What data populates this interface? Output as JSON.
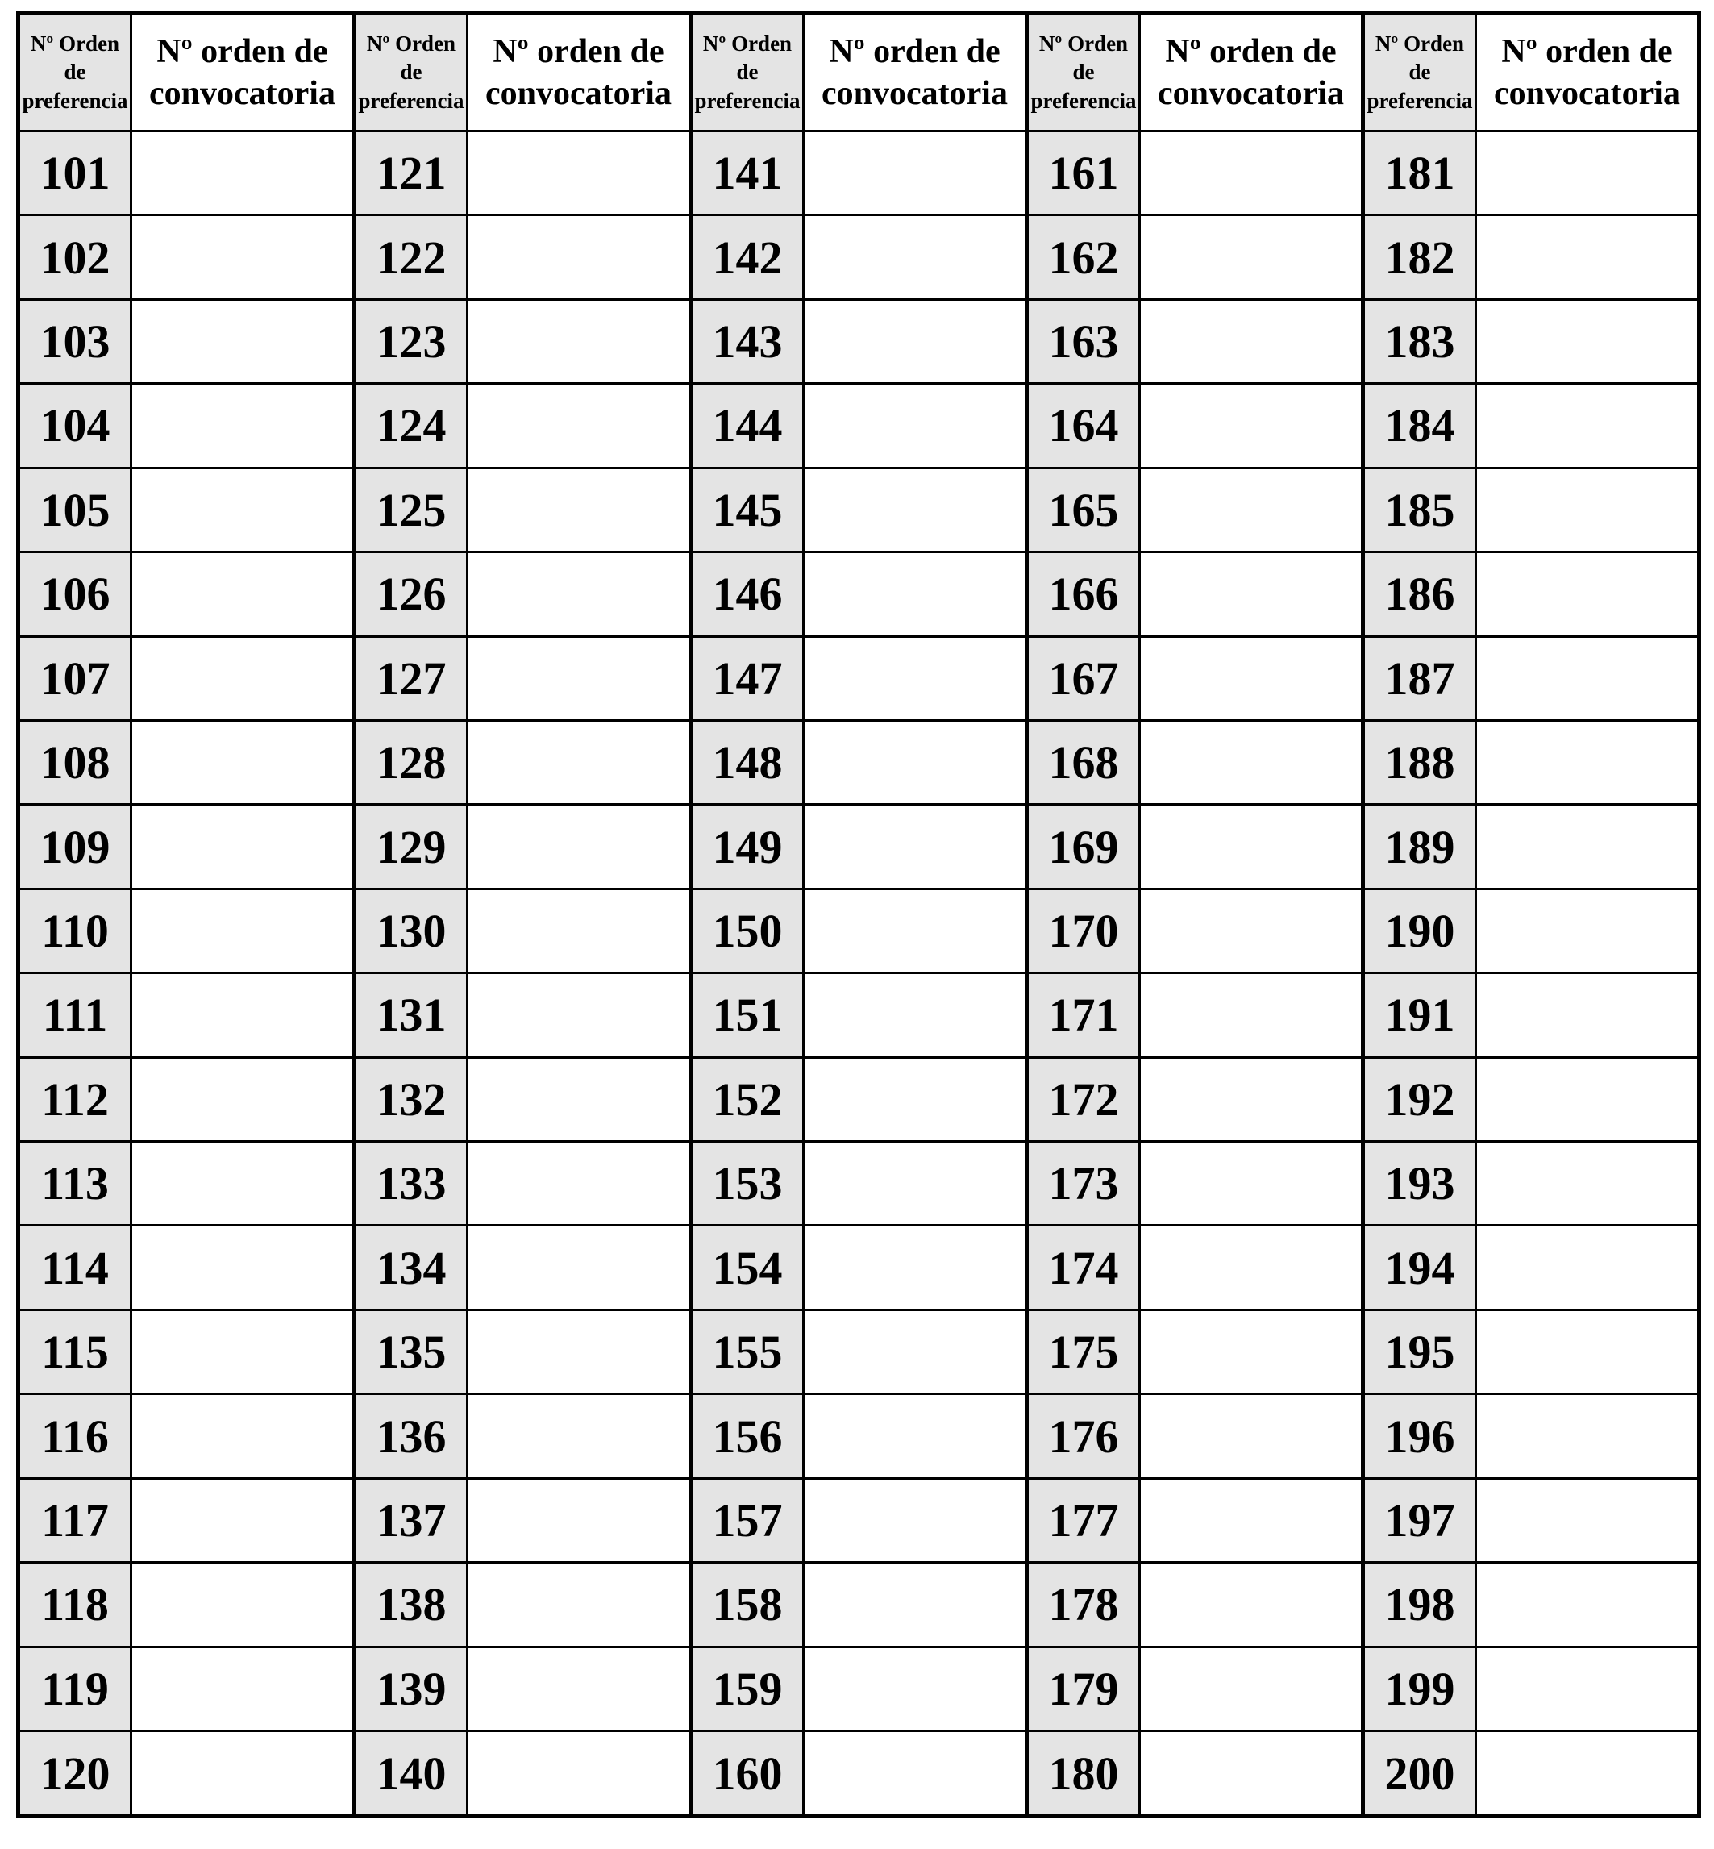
{
  "colors": {
    "shaded_column": "#e4e4e4",
    "border": "#000000",
    "background": "#ffffff"
  },
  "table": {
    "pref_label": "Nº Orden\nde\npreferencia",
    "conv_label": "Nº orden de\nconvocatoria",
    "pairs": [
      {
        "pref_numbers": [
          101,
          102,
          103,
          104,
          105,
          106,
          107,
          108,
          109,
          110,
          111,
          112,
          113,
          114,
          115,
          116,
          117,
          118,
          119,
          120
        ],
        "conv_values": [
          "",
          "",
          "",
          "",
          "",
          "",
          "",
          "",
          "",
          "",
          "",
          "",
          "",
          "",
          "",
          "",
          "",
          "",
          "",
          ""
        ]
      },
      {
        "pref_numbers": [
          121,
          122,
          123,
          124,
          125,
          126,
          127,
          128,
          129,
          130,
          131,
          132,
          133,
          134,
          135,
          136,
          137,
          138,
          139,
          140
        ],
        "conv_values": [
          "",
          "",
          "",
          "",
          "",
          "",
          "",
          "",
          "",
          "",
          "",
          "",
          "",
          "",
          "",
          "",
          "",
          "",
          "",
          ""
        ]
      },
      {
        "pref_numbers": [
          141,
          142,
          143,
          144,
          145,
          146,
          147,
          148,
          149,
          150,
          151,
          152,
          153,
          154,
          155,
          156,
          157,
          158,
          159,
          160
        ],
        "conv_values": [
          "",
          "",
          "",
          "",
          "",
          "",
          "",
          "",
          "",
          "",
          "",
          "",
          "",
          "",
          "",
          "",
          "",
          "",
          "",
          ""
        ]
      },
      {
        "pref_numbers": [
          161,
          162,
          163,
          164,
          165,
          166,
          167,
          168,
          169,
          170,
          171,
          172,
          173,
          174,
          175,
          176,
          177,
          178,
          179,
          180
        ],
        "conv_values": [
          "",
          "",
          "",
          "",
          "",
          "",
          "",
          "",
          "",
          "",
          "",
          "",
          "",
          "",
          "",
          "",
          "",
          "",
          "",
          ""
        ]
      },
      {
        "pref_numbers": [
          181,
          182,
          183,
          184,
          185,
          186,
          187,
          188,
          189,
          190,
          191,
          192,
          193,
          194,
          195,
          196,
          197,
          198,
          199,
          200
        ],
        "conv_values": [
          "",
          "",
          "",
          "",
          "",
          "",
          "",
          "",
          "",
          "",
          "",
          "",
          "",
          "",
          "",
          "",
          "",
          "",
          "",
          ""
        ]
      }
    ]
  }
}
